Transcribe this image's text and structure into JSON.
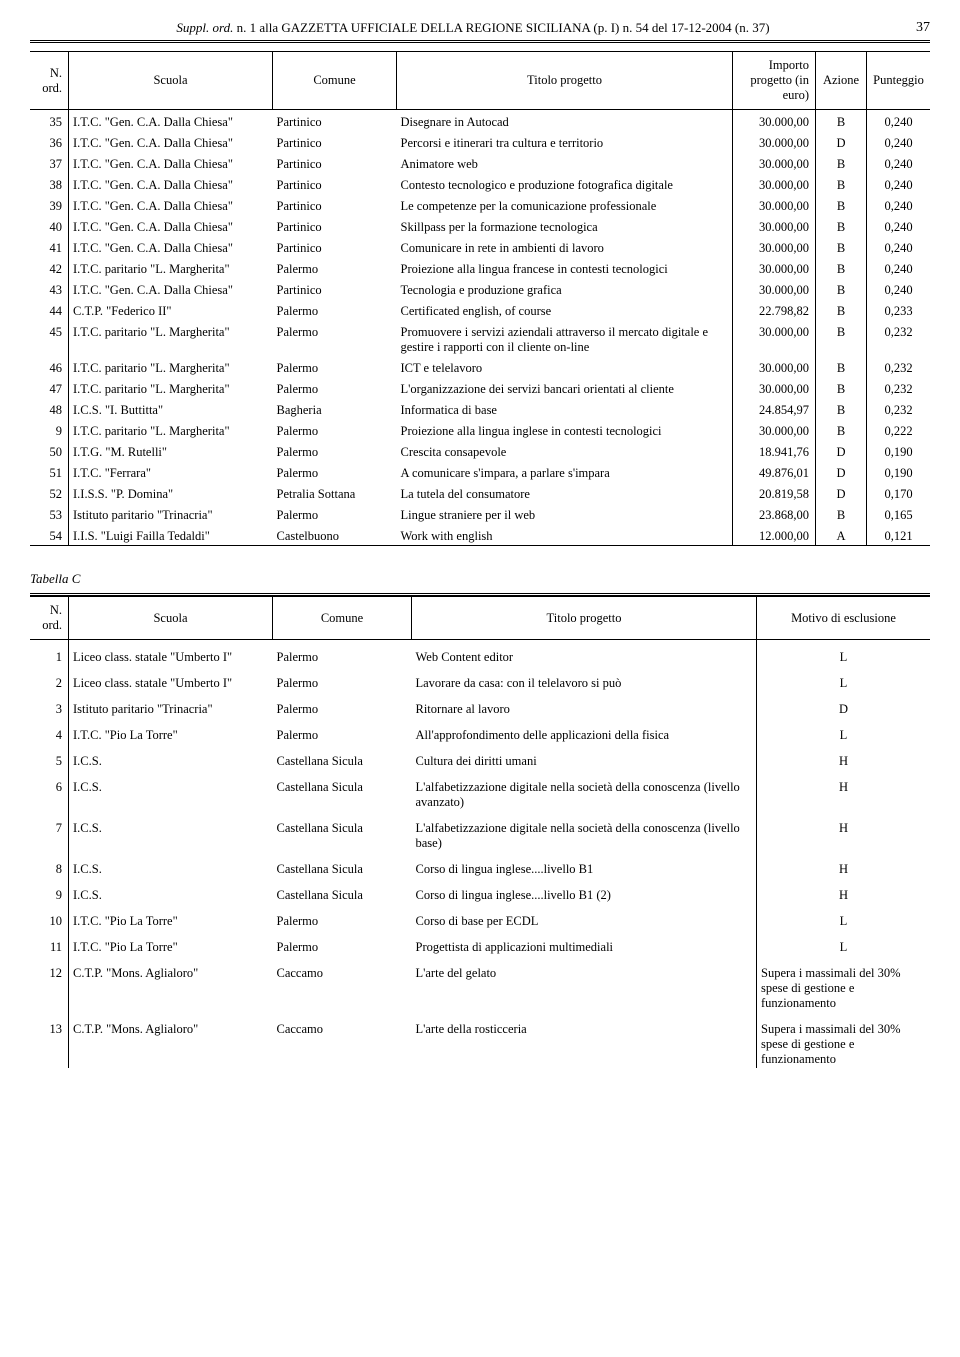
{
  "header": {
    "prefix_italic": "Suppl. ord.",
    "text": " n. 1 alla GAZZETTA UFFICIALE DELLA REGIONE SICILIANA (p. I) n. 54 del 17-12-2004 (n. 37)",
    "pagenum": "37"
  },
  "tableA": {
    "columns": [
      "N. ord.",
      "Scuola",
      "Comune",
      "Titolo progetto",
      "Importo progetto (in euro)",
      "Azione",
      "Punteggio"
    ],
    "rows": [
      [
        "35",
        "I.T.C. \"Gen. C.A. Dalla Chiesa\"",
        "Partinico",
        "Disegnare in Autocad",
        "30.000,00",
        "B",
        "0,240"
      ],
      [
        "36",
        "I.T.C. \"Gen. C.A. Dalla Chiesa\"",
        "Partinico",
        "Percorsi e itinerari tra cultura e territorio",
        "30.000,00",
        "D",
        "0,240"
      ],
      [
        "37",
        "I.T.C. \"Gen. C.A. Dalla Chiesa\"",
        "Partinico",
        "Animatore web",
        "30.000,00",
        "B",
        "0,240"
      ],
      [
        "38",
        "I.T.C. \"Gen. C.A. Dalla Chiesa\"",
        "Partinico",
        "Contesto tecnologico e produzione foto­grafica digitale",
        "30.000,00",
        "B",
        "0,240"
      ],
      [
        "39",
        "I.T.C. \"Gen. C.A. Dalla Chiesa\"",
        "Partinico",
        "Le competenze per la comunicazione professionale",
        "30.000,00",
        "B",
        "0,240"
      ],
      [
        "40",
        "I.T.C. \"Gen. C.A. Dalla Chiesa\"",
        "Partinico",
        "Skillpass per la formazione tecnologica",
        "30.000,00",
        "B",
        "0,240"
      ],
      [
        "41",
        "I.T.C. \"Gen. C.A. Dalla Chiesa\"",
        "Partinico",
        "Comunicare in rete in ambienti di lavoro",
        "30.000,00",
        "B",
        "0,240"
      ],
      [
        "42",
        "I.T.C. paritario \"L. Margherita\"",
        "Palermo",
        "Proiezione alla lingua francese in conte­sti tecnologici",
        "30.000,00",
        "B",
        "0,240"
      ],
      [
        "43",
        "I.T.C. \"Gen. C.A. Dalla Chiesa\"",
        "Partinico",
        "Tecnologia e produzione grafica",
        "30.000,00",
        "B",
        "0,240"
      ],
      [
        "44",
        "C.T.P. \"Federico II\"",
        "Palermo",
        "Certificated english, of course",
        "22.798,82",
        "B",
        "0,233"
      ],
      [
        "45",
        "I.T.C. paritario \"L. Margherita\"",
        "Palermo",
        "Promuovere i servizi aziendali attraverso il mercato digitale e gestire i rapporti con il cliente on-line",
        "30.000,00",
        "B",
        "0,232"
      ],
      [
        "46",
        "I.T.C. paritario \"L. Margherita\"",
        "Palermo",
        "ICT e telelavoro",
        "30.000,00",
        "B",
        "0,232"
      ],
      [
        "47",
        "I.T.C. paritario \"L. Margherita\"",
        "Palermo",
        "L'organizzazione dei servizi bancari orientati al cliente",
        "30.000,00",
        "B",
        "0,232"
      ],
      [
        "48",
        "I.C.S. \"I. Buttitta\"",
        "Bagheria",
        "Informatica di base",
        "24.854,97",
        "B",
        "0,232"
      ],
      [
        "9",
        "I.T.C. paritario \"L. Margherita\"",
        "Palermo",
        "Proiezione alla lingua inglese in contesti tecnologici",
        "30.000,00",
        "B",
        "0,222"
      ],
      [
        "50",
        "I.T.G. \"M. Rutelli\"",
        "Palermo",
        "Crescita consapevole",
        "18.941,76",
        "D",
        "0,190"
      ],
      [
        "51",
        "I.T.C. \"Ferrara\"",
        "Palermo",
        "A comunicare s'impara, a parlare s'impara",
        "49.876,01",
        "D",
        "0,190"
      ],
      [
        "52",
        "I.I.S.S. \"P. Domina\"",
        "Petralia Sottana",
        "La tutela del consumatore",
        "20.819,58",
        "D",
        "0,170"
      ],
      [
        "53",
        "Istituto paritario \"Trinacria\"",
        "Palermo",
        "Lingue straniere per il web",
        "23.868,00",
        "B",
        "0,165"
      ],
      [
        "54",
        "I.I.S. \"Luigi Failla Tedaldi\"",
        "Castelbuono",
        "Work with english",
        "12.000,00",
        "A",
        "0,121"
      ]
    ]
  },
  "tabellaC_label": "Tabella C",
  "tableC": {
    "columns": [
      "N. ord.",
      "Scuola",
      "Comune",
      "Titolo progetto",
      "Motivo di esclusione"
    ],
    "rows": [
      [
        "1",
        "Liceo class. statale \"Umberto I\"",
        "Palermo",
        "Web Content editor",
        "L"
      ],
      [
        "2",
        "Liceo class. statale \"Umberto I\"",
        "Palermo",
        "Lavorare da casa: con il telelavoro si può",
        "L"
      ],
      [
        "3",
        "Istituto paritario \"Trinacria\"",
        "Palermo",
        "Ritornare al lavoro",
        "D"
      ],
      [
        "4",
        "I.T.C. \"Pio La Torre\"",
        "Palermo",
        "All'approfondimento delle applicazioni della fisica",
        "L"
      ],
      [
        "5",
        "I.C.S.",
        "Castellana Sicula",
        "Cultura dei diritti umani",
        "H"
      ],
      [
        "6",
        "I.C.S.",
        "Castellana Sicula",
        "L'alfabetizzazione digitale nella società della conoscenza (livello avanzato)",
        "H"
      ],
      [
        "7",
        "I.C.S.",
        "Castellana Sicula",
        "L'alfabetizzazione digitale nella società della conoscenza (livello base)",
        "H"
      ],
      [
        "8",
        "I.C.S.",
        "Castellana Sicula",
        "Corso di lingua inglese....livello B1",
        "H"
      ],
      [
        "9",
        "I.C.S.",
        "Castellana Sicula",
        "Corso di lingua inglese....livello B1 (2)",
        "H"
      ],
      [
        "10",
        "I.T.C. \"Pio La Torre\"",
        "Palermo",
        "Corso di base per ECDL",
        "L"
      ],
      [
        "11",
        "I.T.C. \"Pio La Torre\"",
        "Palermo",
        "Progettista di applicazioni multimediali",
        "L"
      ],
      [
        "12",
        "C.T.P. \"Mons. Aglialoro\"",
        "Caccamo",
        "L'arte del gelato",
        "Supera i massimali del 30% spese di gestione e funzionamento"
      ],
      [
        "13",
        "C.T.P. \"Mons. Aglialoro\"",
        "Caccamo",
        "L'arte della rosticceria",
        "Supera i massimali del 30% spese di gestione e funzionamento"
      ]
    ]
  }
}
